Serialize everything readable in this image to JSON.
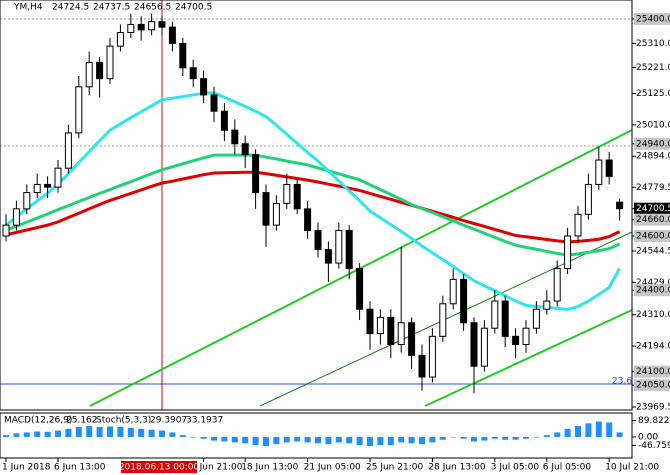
{
  "chart_data": {
    "type": "candlestick",
    "symbol": "YM,H4",
    "categories": [
      "1 Jun 2018",
      null,
      null,
      null,
      null,
      "6 Jun 13:00",
      null,
      null,
      null,
      null,
      null,
      null,
      null,
      null,
      null,
      null,
      null,
      null,
      null,
      "Jun 21:00",
      null,
      null,
      null,
      "18 Jun 13:00",
      null,
      null,
      null,
      null,
      null,
      "21 Jun 05:00",
      null,
      null,
      null,
      null,
      null,
      "25 Jun 21:00",
      null,
      null,
      null,
      null,
      null,
      "28 Jun 13:00",
      null,
      null,
      null,
      null,
      null,
      "3 Jul 05:00",
      null,
      null,
      null,
      null,
      "6 Jul 05:00",
      null,
      null,
      null,
      null,
      null,
      "10 Jul 21:00",
      null
    ],
    "crosshair_label": "2018.06.13 00:00",
    "open": [
      24600,
      24640,
      24700,
      24760,
      24790,
      24780,
      24850,
      24980,
      25150,
      25240,
      25180,
      25300,
      25350,
      25380,
      25360,
      25390,
      25370,
      25310,
      25220,
      25180,
      25120,
      25060,
      24990,
      24940,
      24900,
      24760,
      24640,
      24720,
      24790,
      24700,
      24620,
      24550,
      24500,
      24620,
      24480,
      24330,
      24240,
      24300,
      24200,
      24280,
      24160,
      24080,
      24230,
      24350,
      24440,
      24280,
      24120,
      24260,
      24360,
      24230,
      24200,
      24260,
      24330,
      24360,
      24480,
      24600,
      24680,
      24790,
      24880,
      24724.5
    ],
    "high": [
      24680,
      24730,
      24790,
      24830,
      24820,
      24880,
      25010,
      25190,
      25280,
      25260,
      25330,
      25380,
      25420,
      25410,
      25420,
      25410,
      25390,
      25330,
      25250,
      25210,
      25150,
      25090,
      25030,
      24970,
      24920,
      24790,
      24750,
      24830,
      24810,
      24730,
      24650,
      24580,
      24650,
      24640,
      24500,
      24360,
      24330,
      24330,
      24560,
      24300,
      24200,
      24260,
      24380,
      24480,
      24460,
      24300,
      24290,
      24400,
      24380,
      24260,
      24290,
      24360,
      24400,
      24510,
      24630,
      24710,
      24830,
      24930,
      24910,
      24737.5
    ],
    "low": [
      24580,
      24620,
      24680,
      24740,
      24740,
      24760,
      24830,
      24960,
      25120,
      25110,
      25160,
      25280,
      25330,
      25320,
      25340,
      25340,
      25280,
      25190,
      25150,
      25090,
      25020,
      24950,
      24900,
      24850,
      24700,
      24560,
      24620,
      24700,
      24680,
      24590,
      24520,
      24430,
      24480,
      24440,
      24290,
      24180,
      24200,
      24150,
      24170,
      24110,
      24030,
      24060,
      24210,
      24330,
      24250,
      24020,
      24100,
      24240,
      24190,
      24150,
      24170,
      24240,
      24310,
      24340,
      24460,
      24580,
      24660,
      24770,
      24790,
      24656.5
    ],
    "close": [
      24640,
      24700,
      24760,
      24790,
      24780,
      24850,
      24980,
      25150,
      25240,
      25180,
      25300,
      25350,
      25380,
      25360,
      25390,
      25370,
      25310,
      25220,
      25180,
      25120,
      25060,
      24990,
      24940,
      24900,
      24760,
      24640,
      24720,
      24790,
      24700,
      24620,
      24550,
      24500,
      24620,
      24480,
      24330,
      24240,
      24300,
      24200,
      24280,
      24160,
      24080,
      24230,
      24350,
      24440,
      24280,
      24120,
      24260,
      24360,
      24230,
      24200,
      24260,
      24330,
      24360,
      24480,
      24600,
      24680,
      24790,
      24880,
      24820,
      24700.5
    ],
    "moving_averages": [
      {
        "color": "#e00000",
        "values": [
          24605,
          24613,
          24622,
          24631,
          24640,
          24652,
          24668,
          24684,
          24700,
          24716,
          24731,
          24744,
          24757,
          24770,
          24783,
          24795,
          24802,
          24810,
          24818,
          24826,
          24832,
          24833,
          24834,
          24835,
          24835,
          24830,
          24824,
          24818,
          24812,
          24806,
          24799,
          24791,
          24784,
          24776,
          24768,
          24757,
          24746,
          24735,
          24724,
          24713,
          24702,
          24691,
          24680,
          24669,
          24657,
          24646,
          24635,
          24624,
          24613,
          24602,
          24597,
          24592,
          24587,
          24582,
          24578,
          24580,
          24584,
          24588,
          24598,
          24616
        ]
      },
      {
        "color": "#21d27a",
        "values": [
          24621,
          24636,
          24651,
          24666,
          24681,
          24697,
          24712,
          24727,
          24742,
          24757,
          24771,
          24786,
          24800,
          24815,
          24830,
          24844,
          24855,
          24866,
          24877,
          24888,
          24898,
          24898,
          24898,
          24898,
          24898,
          24891,
          24884,
          24876,
          24869,
          24862,
          24851,
          24840,
          24829,
          24818,
          24807,
          24789,
          24771,
          24753,
          24735,
          24716,
          24701,
          24686,
          24671,
          24656,
          24640,
          24625,
          24610,
          24595,
          24580,
          24566,
          24558,
          24551,
          24543,
          24536,
          24529,
          24534,
          24540,
          24546,
          24553,
          24570
        ]
      },
      {
        "color": "#2ee6ee",
        "values": [
          24640,
          24670,
          24700,
          24729,
          24758,
          24790,
          24830,
          24871,
          24911,
          24951,
          24990,
          25013,
          25036,
          25058,
          25080,
          25102,
          25108,
          25114,
          25120,
          25126,
          25128,
          25111,
          25095,
          25078,
          25060,
          25040,
          25008,
          24975,
          24942,
          24908,
          24876,
          24840,
          24803,
          24766,
          24730,
          24692,
          24667,
          24642,
          24617,
          24591,
          24563,
          24538,
          24513,
          24488,
          24461,
          24435,
          24417,
          24398,
          24380,
          24361,
          24344,
          24340,
          24337,
          24333,
          24329,
          24340,
          24360,
          24385,
          24410,
          24480
        ]
      }
    ],
    "ylim": [
      23969.5,
      25470
    ],
    "yticks": [
      {
        "value": 25400,
        "label": "25400.0"
      },
      {
        "value": 25310,
        "label": "25310.0"
      },
      {
        "value": 25221,
        "label": "25221.0"
      },
      {
        "value": 25125,
        "label": "25125.0"
      },
      {
        "value": 25010,
        "label": "25010.0"
      },
      {
        "value": 24940,
        "label": "24940.0"
      },
      {
        "value": 24894,
        "label": "24894.0"
      },
      24779.5,
      24700.5,
      {
        "value": 24660,
        "label": "24660.0"
      },
      {
        "value": 24600,
        "label": "24600.0"
      },
      24544.5,
      {
        "value": 24429,
        "label": "24429.0"
      },
      {
        "value": 24400,
        "label": "24400.0"
      },
      {
        "value": 24310,
        "label": "24310.0"
      },
      {
        "value": 24194,
        "label": "24194.0"
      },
      {
        "value": 24100,
        "label": "24100.0"
      },
      {
        "value": 24050,
        "label": "24050.0"
      },
      23969.5
    ],
    "fib_label": "23.6",
    "macd": {
      "name": "MACD(12,26,9)",
      "color": "#1e90ff",
      "values": [
        10,
        20,
        25,
        30,
        28,
        35,
        45,
        55,
        60,
        55,
        58,
        55,
        50,
        45,
        40,
        35,
        25,
        10,
        0,
        -10,
        -20,
        -25,
        -30,
        -35,
        -45,
        -50,
        -40,
        -30,
        -25,
        -30,
        -35,
        -40,
        -30,
        -35,
        -45,
        -50,
        -45,
        -45,
        -30,
        -35,
        -40,
        -30,
        -15,
        0,
        -10,
        -25,
        -20,
        -10,
        -15,
        -15,
        -10,
        0,
        10,
        25,
        45,
        60,
        75,
        85,
        80,
        25.162
      ]
    },
    "stochastic": {
      "name": "Stoch(5,3,3)",
      "main": 29.3907,
      "signal": 33.1937
    },
    "sub_ylim": [
      -116,
      132
    ],
    "sub_yticks": [
      89.822,
      {
        "value": 0,
        "label": "0.00"
      },
      -46.759
    ]
  }
}
